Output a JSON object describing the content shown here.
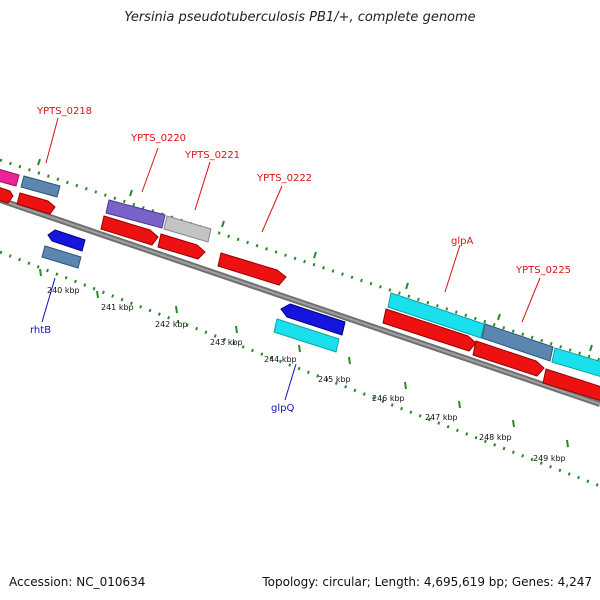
{
  "title": "Yersinia pseudotuberculosis PB1/+, complete genome",
  "accession_text": "Accession: NC_010634",
  "summary_text": "Topology: circular; Length: 4,695,619 bp; Genes: 4,247",
  "colors": {
    "forward_cds": "#ee1111",
    "reverse_cds": "#1515dd",
    "pink_feature": "#ee2299",
    "steel_feature": "#5a86b0",
    "purple_feature": "#7b62c8",
    "gray_feature": "#b8b8b8",
    "cyan_feature": "#19e0ec",
    "backbone": "#808080",
    "dotted_track": "#2a8a2a",
    "forward_label": "#dd1111",
    "reverse_label": "#1111bb"
  },
  "kbp_ticks": [
    "240 kbp",
    "241 kbp",
    "242 kbp",
    "243 kbp",
    "244 kbp",
    "245 kbp",
    "246 kbp",
    "247 kbp",
    "248 kbp",
    "249 kbp"
  ],
  "gene_labels": {
    "forward": [
      "YPTS_0218",
      "YPTS_0220",
      "YPTS_0221",
      "YPTS_0222",
      "glpA",
      "YPTS_0225"
    ],
    "reverse": [
      "rhtB",
      "glpQ"
    ]
  }
}
